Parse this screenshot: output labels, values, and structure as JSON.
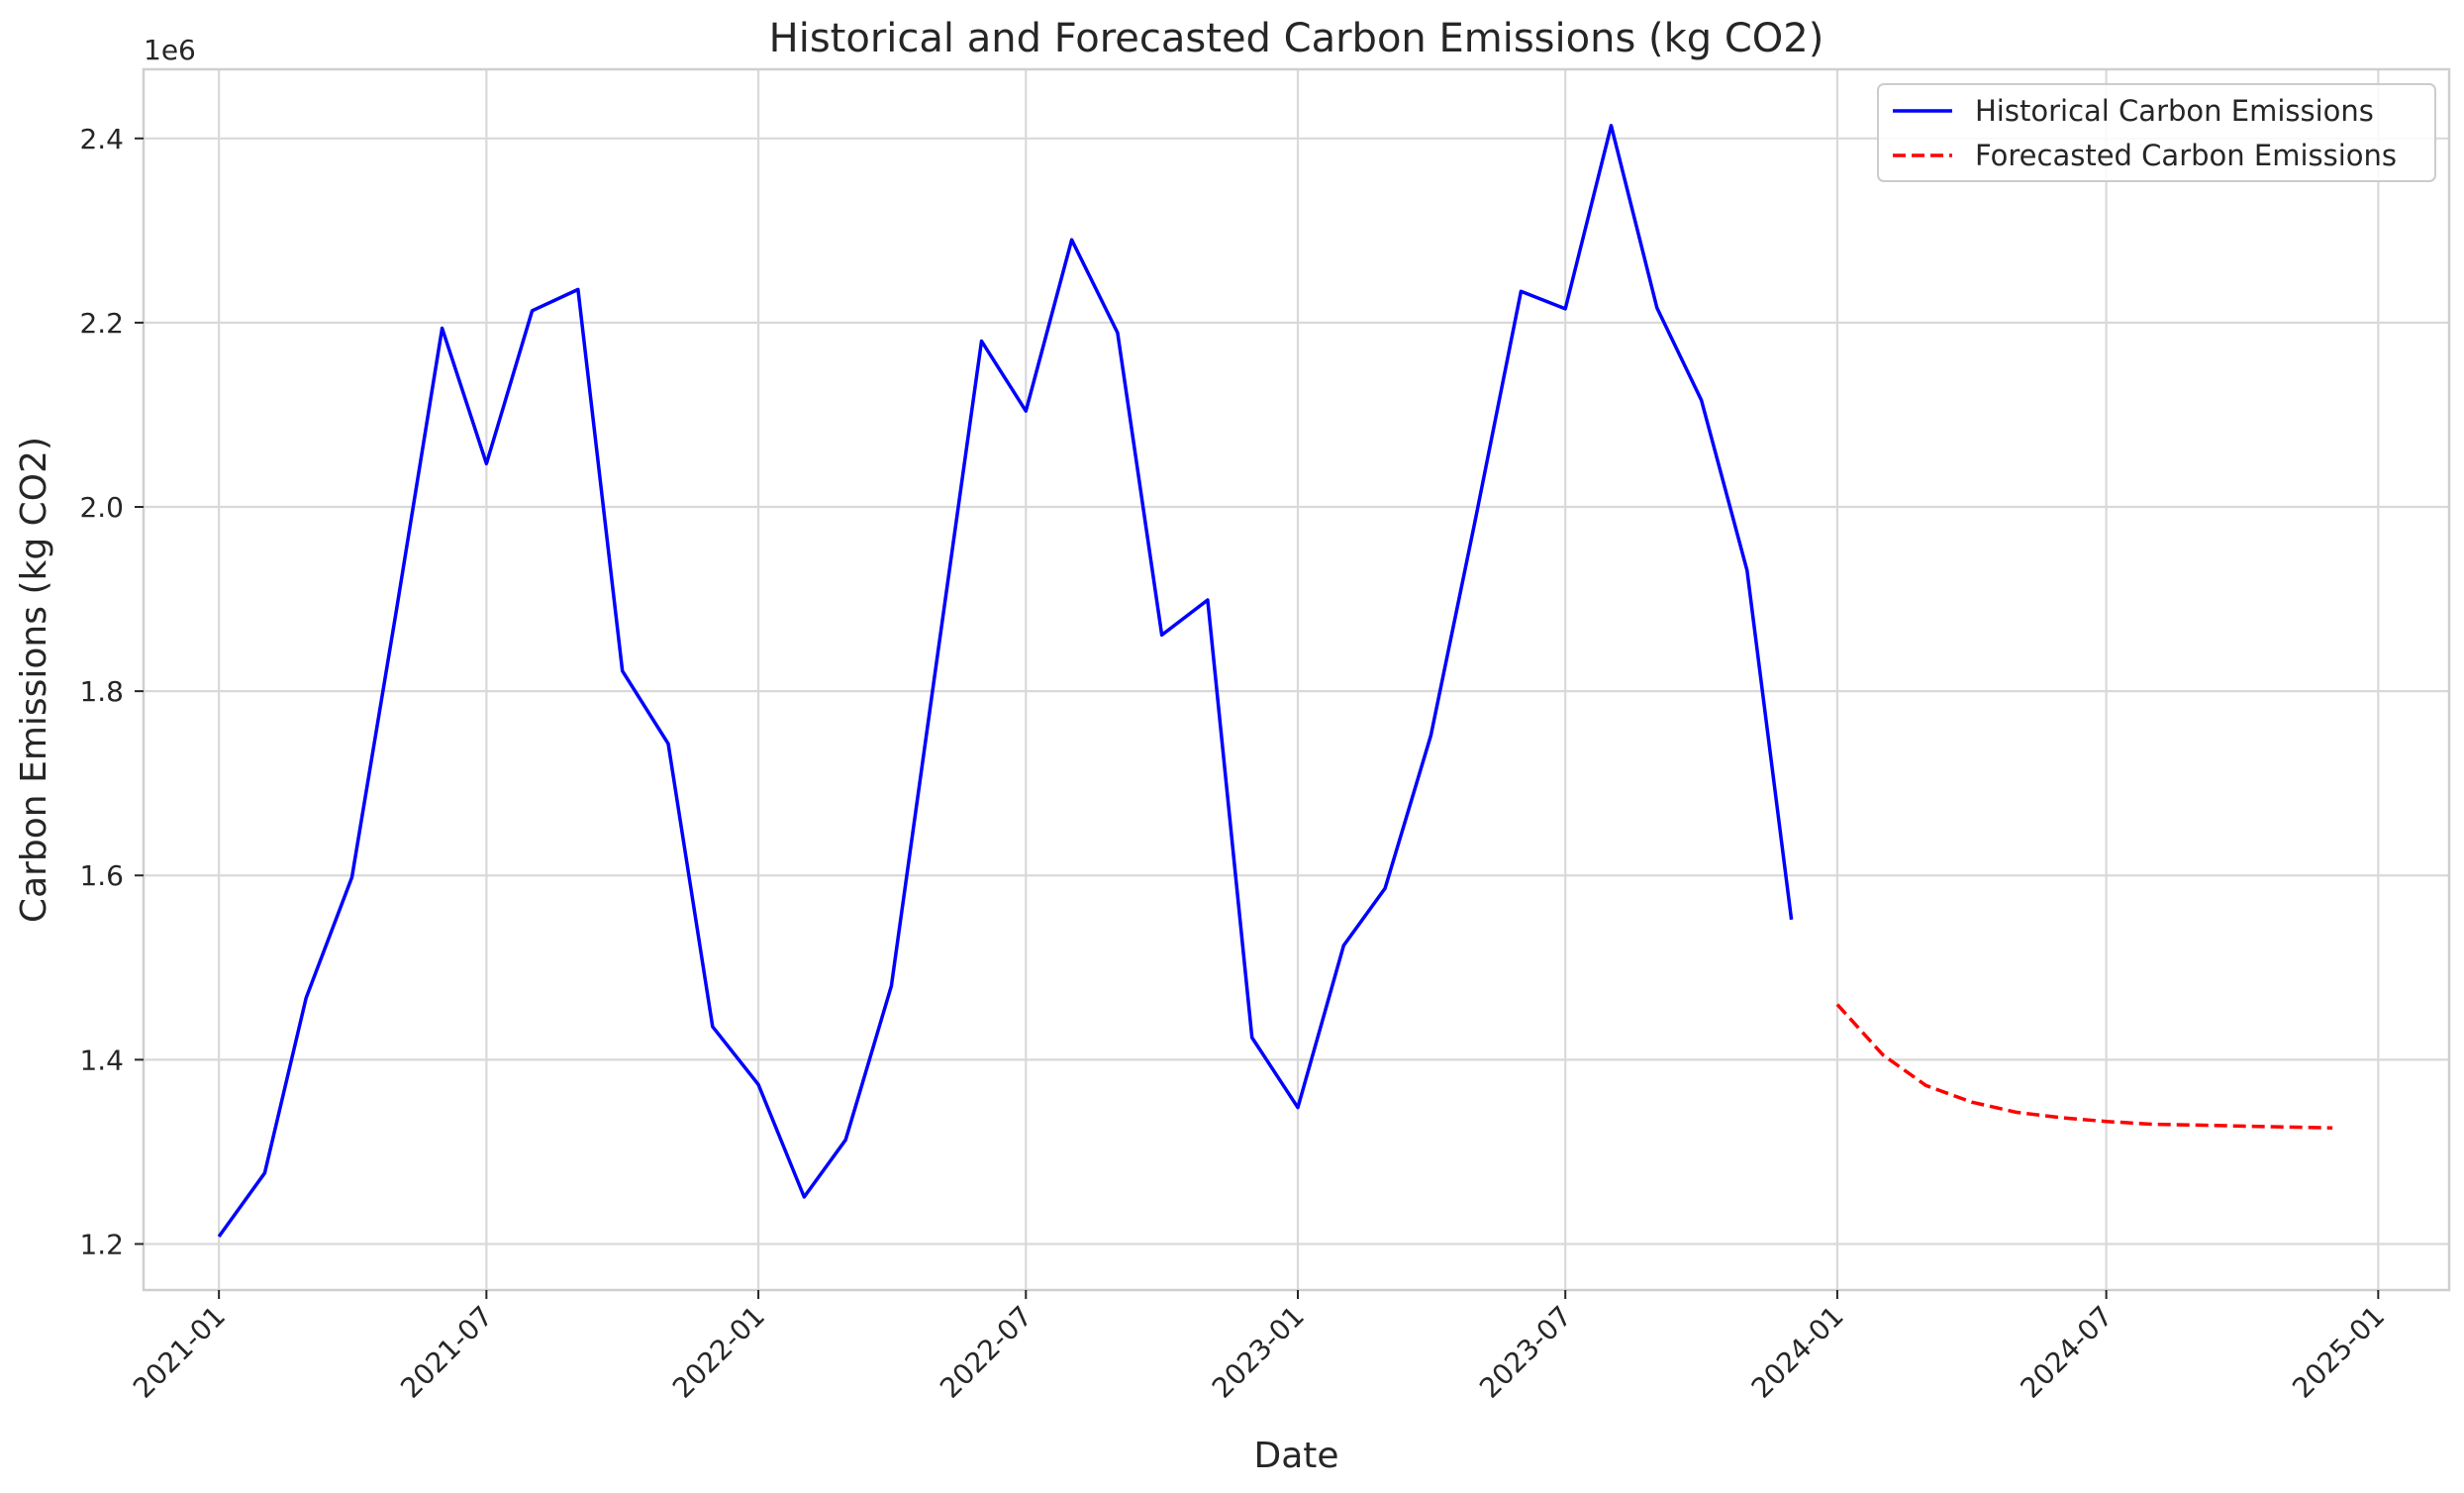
{
  "chart_data": {
    "type": "line",
    "title": "Historical and Forecasted Carbon Emissions (kg CO2)",
    "xlabel": "Date",
    "ylabel": "Carbon Emissions (kg CO2)",
    "y_offset_label": "1e6",
    "xlim": [
      "2020-11-11",
      "2025-02-18"
    ],
    "ylim": [
      1150000,
      2475000
    ],
    "x_ticks": [
      "2021-01",
      "2021-07",
      "2022-01",
      "2022-07",
      "2023-01",
      "2023-07",
      "2024-01",
      "2024-07",
      "2025-01"
    ],
    "y_ticks": [
      1200000,
      1400000,
      1600000,
      1800000,
      2000000,
      2200000,
      2400000
    ],
    "y_tick_labels": [
      "1.2",
      "1.4",
      "1.6",
      "1.8",
      "2.0",
      "2.2",
      "2.4"
    ],
    "grid": true,
    "legend_position": "top-right",
    "series": [
      {
        "name": "Historical Carbon Emissions",
        "color": "#0000ff",
        "style": "solid",
        "x": [
          "2021-01-01",
          "2021-02-01",
          "2021-03-01",
          "2021-04-01",
          "2021-05-01",
          "2021-06-01",
          "2021-07-01",
          "2021-08-01",
          "2021-09-01",
          "2021-10-01",
          "2021-11-01",
          "2021-12-01",
          "2022-01-01",
          "2022-02-01",
          "2022-03-01",
          "2022-04-01",
          "2022-05-01",
          "2022-06-01",
          "2022-07-01",
          "2022-08-01",
          "2022-09-01",
          "2022-10-01",
          "2022-11-01",
          "2022-12-01",
          "2023-01-01",
          "2023-02-01",
          "2023-03-01",
          "2023-04-01",
          "2023-05-01",
          "2023-06-01",
          "2023-07-01",
          "2023-08-01",
          "2023-09-01",
          "2023-10-01",
          "2023-11-01",
          "2023-12-01"
        ],
        "values": [
          1208000,
          1277000,
          1467000,
          1598000,
          1887000,
          2194000,
          2047000,
          2213000,
          2236000,
          1822000,
          1743000,
          1436000,
          1373000,
          1251000,
          1313000,
          1480000,
          1825000,
          2180000,
          2104000,
          2290000,
          2189000,
          1861000,
          1899000,
          1424000,
          1348000,
          1524000,
          1586000,
          1752000,
          1985000,
          2234000,
          2215000,
          2414000,
          2216000,
          2116000,
          1931000,
          1552000
        ]
      },
      {
        "name": "Forecasted Carbon Emissions",
        "color": "#ff0000",
        "style": "dashed",
        "x": [
          "2024-01-01",
          "2024-02-01",
          "2024-03-01",
          "2024-04-01",
          "2024-05-01",
          "2024-06-01",
          "2024-07-01",
          "2024-08-01",
          "2024-09-01",
          "2024-10-01",
          "2024-11-01",
          "2024-12-01"
        ],
        "values": [
          1460000,
          1405000,
          1372000,
          1354000,
          1343000,
          1337000,
          1333000,
          1330000,
          1329000,
          1328000,
          1327000,
          1326000
        ]
      }
    ]
  }
}
